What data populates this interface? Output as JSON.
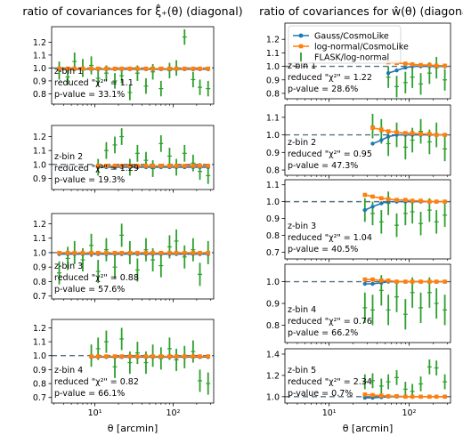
{
  "chart_data": [
    {
      "type": "errorbar",
      "title": "ratio of covariances for ξ̂₊(θ) (diagonal)",
      "xlabel": "θ [arcmin]",
      "x_scale": "log",
      "x_tick_labels": [
        "10¹",
        "10²"
      ],
      "legend": {
        "placement": "none",
        "entries": []
      },
      "series_names": {
        "gauss": "Gauss/CosmoLike",
        "lognormal": "log-normal/CosmoLike",
        "flask": "FLASK/log-normal"
      },
      "colors": {
        "gauss": "#1f77b4",
        "lognormal": "#ff7f0e",
        "flask": "#2ca02c",
        "reference": "#5c6f7c"
      },
      "x": [
        3.5,
        4.5,
        5.5,
        7,
        9,
        11,
        14,
        18,
        22,
        28,
        35,
        45,
        55,
        70,
        90,
        110,
        140,
        180,
        220,
        280
      ],
      "panels": [
        {
          "bin_label": "z-bin 1",
          "chi2_label": "reduced \"χ²\" = 1.1",
          "pvalue_label": "p-value = 33.1%",
          "yticks": [
            "0.8",
            "0.9",
            "1.0",
            "1.1",
            "1.2"
          ],
          "ylim": [
            0.72,
            1.32
          ],
          "gauss": [
            0.99,
            0.99,
            0.99,
            0.99,
            0.99,
            0.99,
            0.99,
            0.99,
            0.99,
            0.99,
            0.99,
            0.99,
            0.99,
            0.99,
            0.99,
            0.99,
            0.99,
            0.99,
            0.99,
            0.99
          ],
          "lognormal": [
            0.995,
            0.995,
            0.995,
            0.995,
            0.995,
            0.995,
            0.995,
            0.995,
            0.995,
            0.995,
            0.995,
            0.995,
            0.995,
            0.995,
            0.995,
            0.995,
            0.995,
            0.995,
            0.995,
            0.995
          ],
          "flask": [
            0.98,
            0.93,
            1.05,
            1.0,
            1.02,
            0.92,
            0.96,
            0.9,
            0.94,
            0.81,
            0.96,
            0.86,
            0.97,
            0.84,
            0.98,
            1.0,
            1.24,
            0.91,
            0.85,
            0.84
          ],
          "flask_err": [
            0.07,
            0.06,
            0.07,
            0.07,
            0.07,
            0.06,
            0.06,
            0.06,
            0.06,
            0.06,
            0.06,
            0.06,
            0.06,
            0.06,
            0.06,
            0.06,
            0.06,
            0.06,
            0.06,
            0.06
          ]
        },
        {
          "bin_label": "z-bin 2",
          "chi2_label": "reduced \"χ²\" = 1.29",
          "pvalue_label": "p-value = 19.3%",
          "yticks": [
            "0.9",
            "1.0",
            "1.1",
            "1.2"
          ],
          "ylim": [
            0.82,
            1.28
          ],
          "gauss": [
            null,
            null,
            null,
            null,
            null,
            0.98,
            0.98,
            0.98,
            0.98,
            0.98,
            0.98,
            0.98,
            0.98,
            0.98,
            0.98,
            0.98,
            0.98,
            0.98,
            0.98,
            0.98
          ],
          "lognormal": [
            null,
            null,
            null,
            null,
            null,
            0.99,
            0.99,
            0.99,
            0.99,
            0.99,
            0.99,
            0.99,
            0.99,
            0.99,
            0.99,
            0.99,
            0.99,
            0.99,
            0.99,
            0.99
          ],
          "flask": [
            null,
            null,
            null,
            null,
            null,
            0.98,
            1.1,
            1.14,
            1.2,
            0.98,
            1.08,
            1.03,
            0.97,
            1.15,
            1.06,
            0.98,
            1.08,
            1.01,
            0.95,
            0.92
          ],
          "flask_err": [
            null,
            null,
            null,
            null,
            null,
            0.06,
            0.06,
            0.06,
            0.06,
            0.06,
            0.06,
            0.06,
            0.06,
            0.06,
            0.06,
            0.06,
            0.06,
            0.06,
            0.06,
            0.06
          ]
        },
        {
          "bin_label": "z-bin 3",
          "chi2_label": "reduced \"χ²\" = 0.88",
          "pvalue_label": "p-value = 57.6%",
          "yticks": [
            "0.7",
            "0.8",
            "0.9",
            "1.0",
            "1.1",
            "1.2"
          ],
          "ylim": [
            0.68,
            1.27
          ],
          "gauss": [
            0.99,
            0.99,
            0.99,
            0.99,
            0.99,
            0.99,
            0.99,
            0.99,
            0.99,
            0.99,
            0.99,
            0.99,
            0.99,
            0.99,
            0.99,
            0.99,
            0.99,
            0.99,
            0.99,
            0.99
          ],
          "lognormal": [
            0.998,
            0.998,
            0.998,
            0.998,
            0.998,
            0.998,
            0.998,
            0.998,
            0.998,
            0.998,
            0.998,
            0.998,
            0.998,
            0.998,
            0.998,
            0.998,
            0.998,
            0.998,
            0.998,
            0.998
          ],
          "flask": [
            0.86,
            0.96,
            1.0,
            0.95,
            1.05,
            0.87,
            1.02,
            0.9,
            1.12,
            1.0,
            0.88,
            1.02,
            0.95,
            0.91,
            1.04,
            1.08,
            0.97,
            1.02,
            0.85,
            1.0
          ],
          "flask_err": [
            0.08,
            0.08,
            0.08,
            0.08,
            0.08,
            0.08,
            0.08,
            0.08,
            0.08,
            0.08,
            0.08,
            0.08,
            0.08,
            0.08,
            0.08,
            0.08,
            0.08,
            0.08,
            0.08,
            0.08
          ]
        },
        {
          "bin_label": "z-bin 4",
          "chi2_label": "reduced \"χ²\" = 0.82",
          "pvalue_label": "p-value = 66.1%",
          "yticks": [
            "0.7",
            "0.8",
            "0.9",
            "1.0",
            "1.1",
            "1.2"
          ],
          "ylim": [
            0.66,
            1.26
          ],
          "gauss": [
            null,
            null,
            null,
            null,
            0.99,
            0.99,
            0.99,
            0.99,
            0.99,
            0.99,
            0.99,
            0.99,
            0.99,
            0.99,
            0.99,
            0.99,
            0.99,
            0.99,
            0.99,
            0.99
          ],
          "lognormal": [
            null,
            null,
            null,
            null,
            0.995,
            0.995,
            0.995,
            0.995,
            0.995,
            0.995,
            0.995,
            0.995,
            0.995,
            0.995,
            0.995,
            0.995,
            0.995,
            0.995,
            0.995,
            0.995
          ],
          "flask": [
            null,
            null,
            null,
            null,
            1.0,
            1.05,
            1.1,
            0.92,
            1.12,
            0.95,
            1.02,
            0.95,
            1.0,
            0.98,
            1.05,
            0.97,
            0.99,
            1.03,
            0.82,
            0.8
          ],
          "flask_err": [
            null,
            null,
            null,
            null,
            0.08,
            0.08,
            0.08,
            0.08,
            0.08,
            0.08,
            0.08,
            0.08,
            0.08,
            0.08,
            0.08,
            0.08,
            0.08,
            0.08,
            0.08,
            0.08
          ]
        }
      ]
    },
    {
      "type": "errorbar",
      "title": "ratio of covariances for ŵ(θ) (diagonal)",
      "xlabel": "θ [arcmin]",
      "x_scale": "log",
      "x_tick_labels": [
        "10¹",
        "10²"
      ],
      "legend": {
        "placement": "top-left",
        "entries": [
          "Gauss/CosmoLike",
          "log-normal/CosmoLike",
          "FLASK/log-normal"
        ]
      },
      "series_names": {
        "gauss": "Gauss/CosmoLike",
        "lognormal": "log-normal/CosmoLike",
        "flask": "FLASK/log-normal"
      },
      "colors": {
        "gauss": "#1f77b4",
        "lognormal": "#ff7f0e",
        "flask": "#2ca02c",
        "reference": "#5c6f7c"
      },
      "x": [
        3.5,
        4.5,
        5.5,
        7,
        9,
        11,
        14,
        18,
        22,
        28,
        35,
        45,
        55,
        70,
        90,
        110,
        140,
        180,
        220,
        280
      ],
      "panels": [
        {
          "bin_label": "z-bin 1",
          "chi2_label": "reduced \"χ²\" = 1.22",
          "pvalue_label": "p-value = 28.6%",
          "yticks": [
            "0.8",
            "0.9",
            "1.0",
            "1.1",
            "1.2"
          ],
          "ylim": [
            0.76,
            1.32
          ],
          "gauss": [
            null,
            null,
            null,
            null,
            null,
            null,
            null,
            null,
            null,
            null,
            null,
            null,
            0.95,
            0.97,
            0.99,
            1.0,
            1.0,
            1.0,
            1.0,
            1.0
          ],
          "lognormal": [
            null,
            null,
            null,
            null,
            null,
            null,
            null,
            null,
            null,
            null,
            null,
            null,
            1.03,
            1.025,
            1.02,
            1.015,
            1.01,
            1.01,
            1.005,
            1.005
          ],
          "flask": [
            null,
            null,
            null,
            null,
            null,
            null,
            null,
            null,
            null,
            null,
            null,
            null,
            0.92,
            0.85,
            0.88,
            0.92,
            0.87,
            0.95,
            0.99,
            0.9
          ],
          "flask_err": [
            null,
            null,
            null,
            null,
            null,
            null,
            null,
            null,
            null,
            null,
            null,
            null,
            0.08,
            0.08,
            0.08,
            0.08,
            0.08,
            0.08,
            0.08,
            0.08
          ]
        },
        {
          "bin_label": "z-bin 2",
          "chi2_label": "reduced \"χ²\" = 0.95",
          "pvalue_label": "p-value = 47.3%",
          "yticks": [
            "0.8",
            "0.9",
            "1.0",
            "1.1"
          ],
          "ylim": [
            0.77,
            1.17
          ],
          "gauss": [
            null,
            null,
            null,
            null,
            null,
            null,
            null,
            null,
            null,
            null,
            0.95,
            0.97,
            0.99,
            1.0,
            1.0,
            1.0,
            1.0,
            1.0,
            1.0,
            1.0
          ],
          "lognormal": [
            null,
            null,
            null,
            null,
            null,
            null,
            null,
            null,
            null,
            null,
            1.04,
            1.03,
            1.02,
            1.015,
            1.01,
            1.01,
            1.005,
            1.005,
            1.0,
            1.0
          ],
          "flask": [
            null,
            null,
            null,
            null,
            null,
            null,
            null,
            null,
            null,
            null,
            1.05,
            1.02,
            0.95,
            1.0,
            0.93,
            0.97,
            1.02,
            0.96,
            1.0,
            0.92
          ],
          "flask_err": [
            null,
            null,
            null,
            null,
            null,
            null,
            null,
            null,
            null,
            null,
            0.07,
            0.07,
            0.07,
            0.07,
            0.07,
            0.07,
            0.07,
            0.07,
            0.07,
            0.07
          ]
        },
        {
          "bin_label": "z-bin 3",
          "chi2_label": "reduced \"χ²\" = 1.04",
          "pvalue_label": "p-value = 40.5%",
          "yticks": [
            "0.7",
            "0.8",
            "0.9",
            "1.0",
            "1.1"
          ],
          "ylim": [
            0.66,
            1.13
          ],
          "gauss": [
            null,
            null,
            null,
            null,
            null,
            null,
            null,
            null,
            null,
            0.95,
            0.97,
            0.99,
            1.0,
            1.0,
            1.0,
            1.0,
            1.0,
            1.0,
            1.0,
            1.0
          ],
          "lognormal": [
            null,
            null,
            null,
            null,
            null,
            null,
            null,
            null,
            null,
            1.04,
            1.03,
            1.02,
            1.015,
            1.01,
            1.01,
            1.005,
            1.005,
            1.0,
            1.0,
            1.0
          ],
          "flask": [
            null,
            null,
            null,
            null,
            null,
            null,
            null,
            null,
            null,
            0.95,
            0.93,
            0.88,
            0.99,
            0.86,
            0.93,
            0.94,
            0.87,
            0.95,
            0.88,
            0.92
          ],
          "flask_err": [
            null,
            null,
            null,
            null,
            null,
            null,
            null,
            null,
            null,
            0.07,
            0.07,
            0.07,
            0.07,
            0.07,
            0.07,
            0.07,
            0.07,
            0.07,
            0.07,
            0.07
          ]
        },
        {
          "bin_label": "z-bin 4",
          "chi2_label": "reduced \"χ²\" = 0.76",
          "pvalue_label": "p-value = 66.2%",
          "yticks": [
            "0.8",
            "0.9",
            "1.0"
          ],
          "ylim": [
            0.72,
            1.08
          ],
          "gauss": [
            null,
            null,
            null,
            null,
            null,
            null,
            null,
            null,
            null,
            0.99,
            0.99,
            0.995,
            1.0,
            1.0,
            1.0,
            1.0,
            1.0,
            1.0,
            1.0,
            1.0
          ],
          "lognormal": [
            null,
            null,
            null,
            null,
            null,
            null,
            null,
            null,
            null,
            1.01,
            1.01,
            1.005,
            1.005,
            1.0,
            1.0,
            1.0,
            1.0,
            1.0,
            1.0,
            1.0
          ],
          "flask": [
            null,
            null,
            null,
            null,
            null,
            null,
            null,
            null,
            null,
            0.88,
            0.87,
            0.96,
            0.87,
            0.93,
            0.85,
            0.95,
            0.88,
            0.95,
            0.9,
            0.87
          ],
          "flask_err": [
            null,
            null,
            null,
            null,
            null,
            null,
            null,
            null,
            null,
            0.07,
            0.07,
            0.07,
            0.07,
            0.07,
            0.07,
            0.07,
            0.07,
            0.07,
            0.07,
            0.07
          ]
        },
        {
          "bin_label": "z-bin 5",
          "chi2_label": "reduced \"χ²\" = 2.34",
          "pvalue_label": "p-value = 0.7%",
          "yticks": [
            "1.0",
            "1.2",
            "1.4"
          ],
          "ylim": [
            0.94,
            1.45
          ],
          "gauss": [
            null,
            null,
            null,
            null,
            null,
            null,
            null,
            null,
            null,
            0.99,
            0.99,
            0.995,
            1.0,
            1.0,
            1.0,
            1.0,
            1.0,
            1.0,
            1.0,
            1.0
          ],
          "lognormal": [
            null,
            null,
            null,
            null,
            null,
            null,
            null,
            null,
            null,
            1.02,
            1.015,
            1.01,
            1.005,
            1.005,
            1.0,
            1.0,
            1.0,
            1.0,
            1.0,
            1.0
          ],
          "flask": [
            null,
            null,
            null,
            null,
            null,
            null,
            null,
            null,
            null,
            1.14,
            1.15,
            1.1,
            1.14,
            1.18,
            1.07,
            1.05,
            1.12,
            1.28,
            1.27,
            1.14
          ],
          "flask_err": [
            null,
            null,
            null,
            null,
            null,
            null,
            null,
            null,
            null,
            0.07,
            0.07,
            0.07,
            0.07,
            0.07,
            0.07,
            0.07,
            0.07,
            0.07,
            0.07,
            0.07
          ]
        }
      ]
    }
  ]
}
